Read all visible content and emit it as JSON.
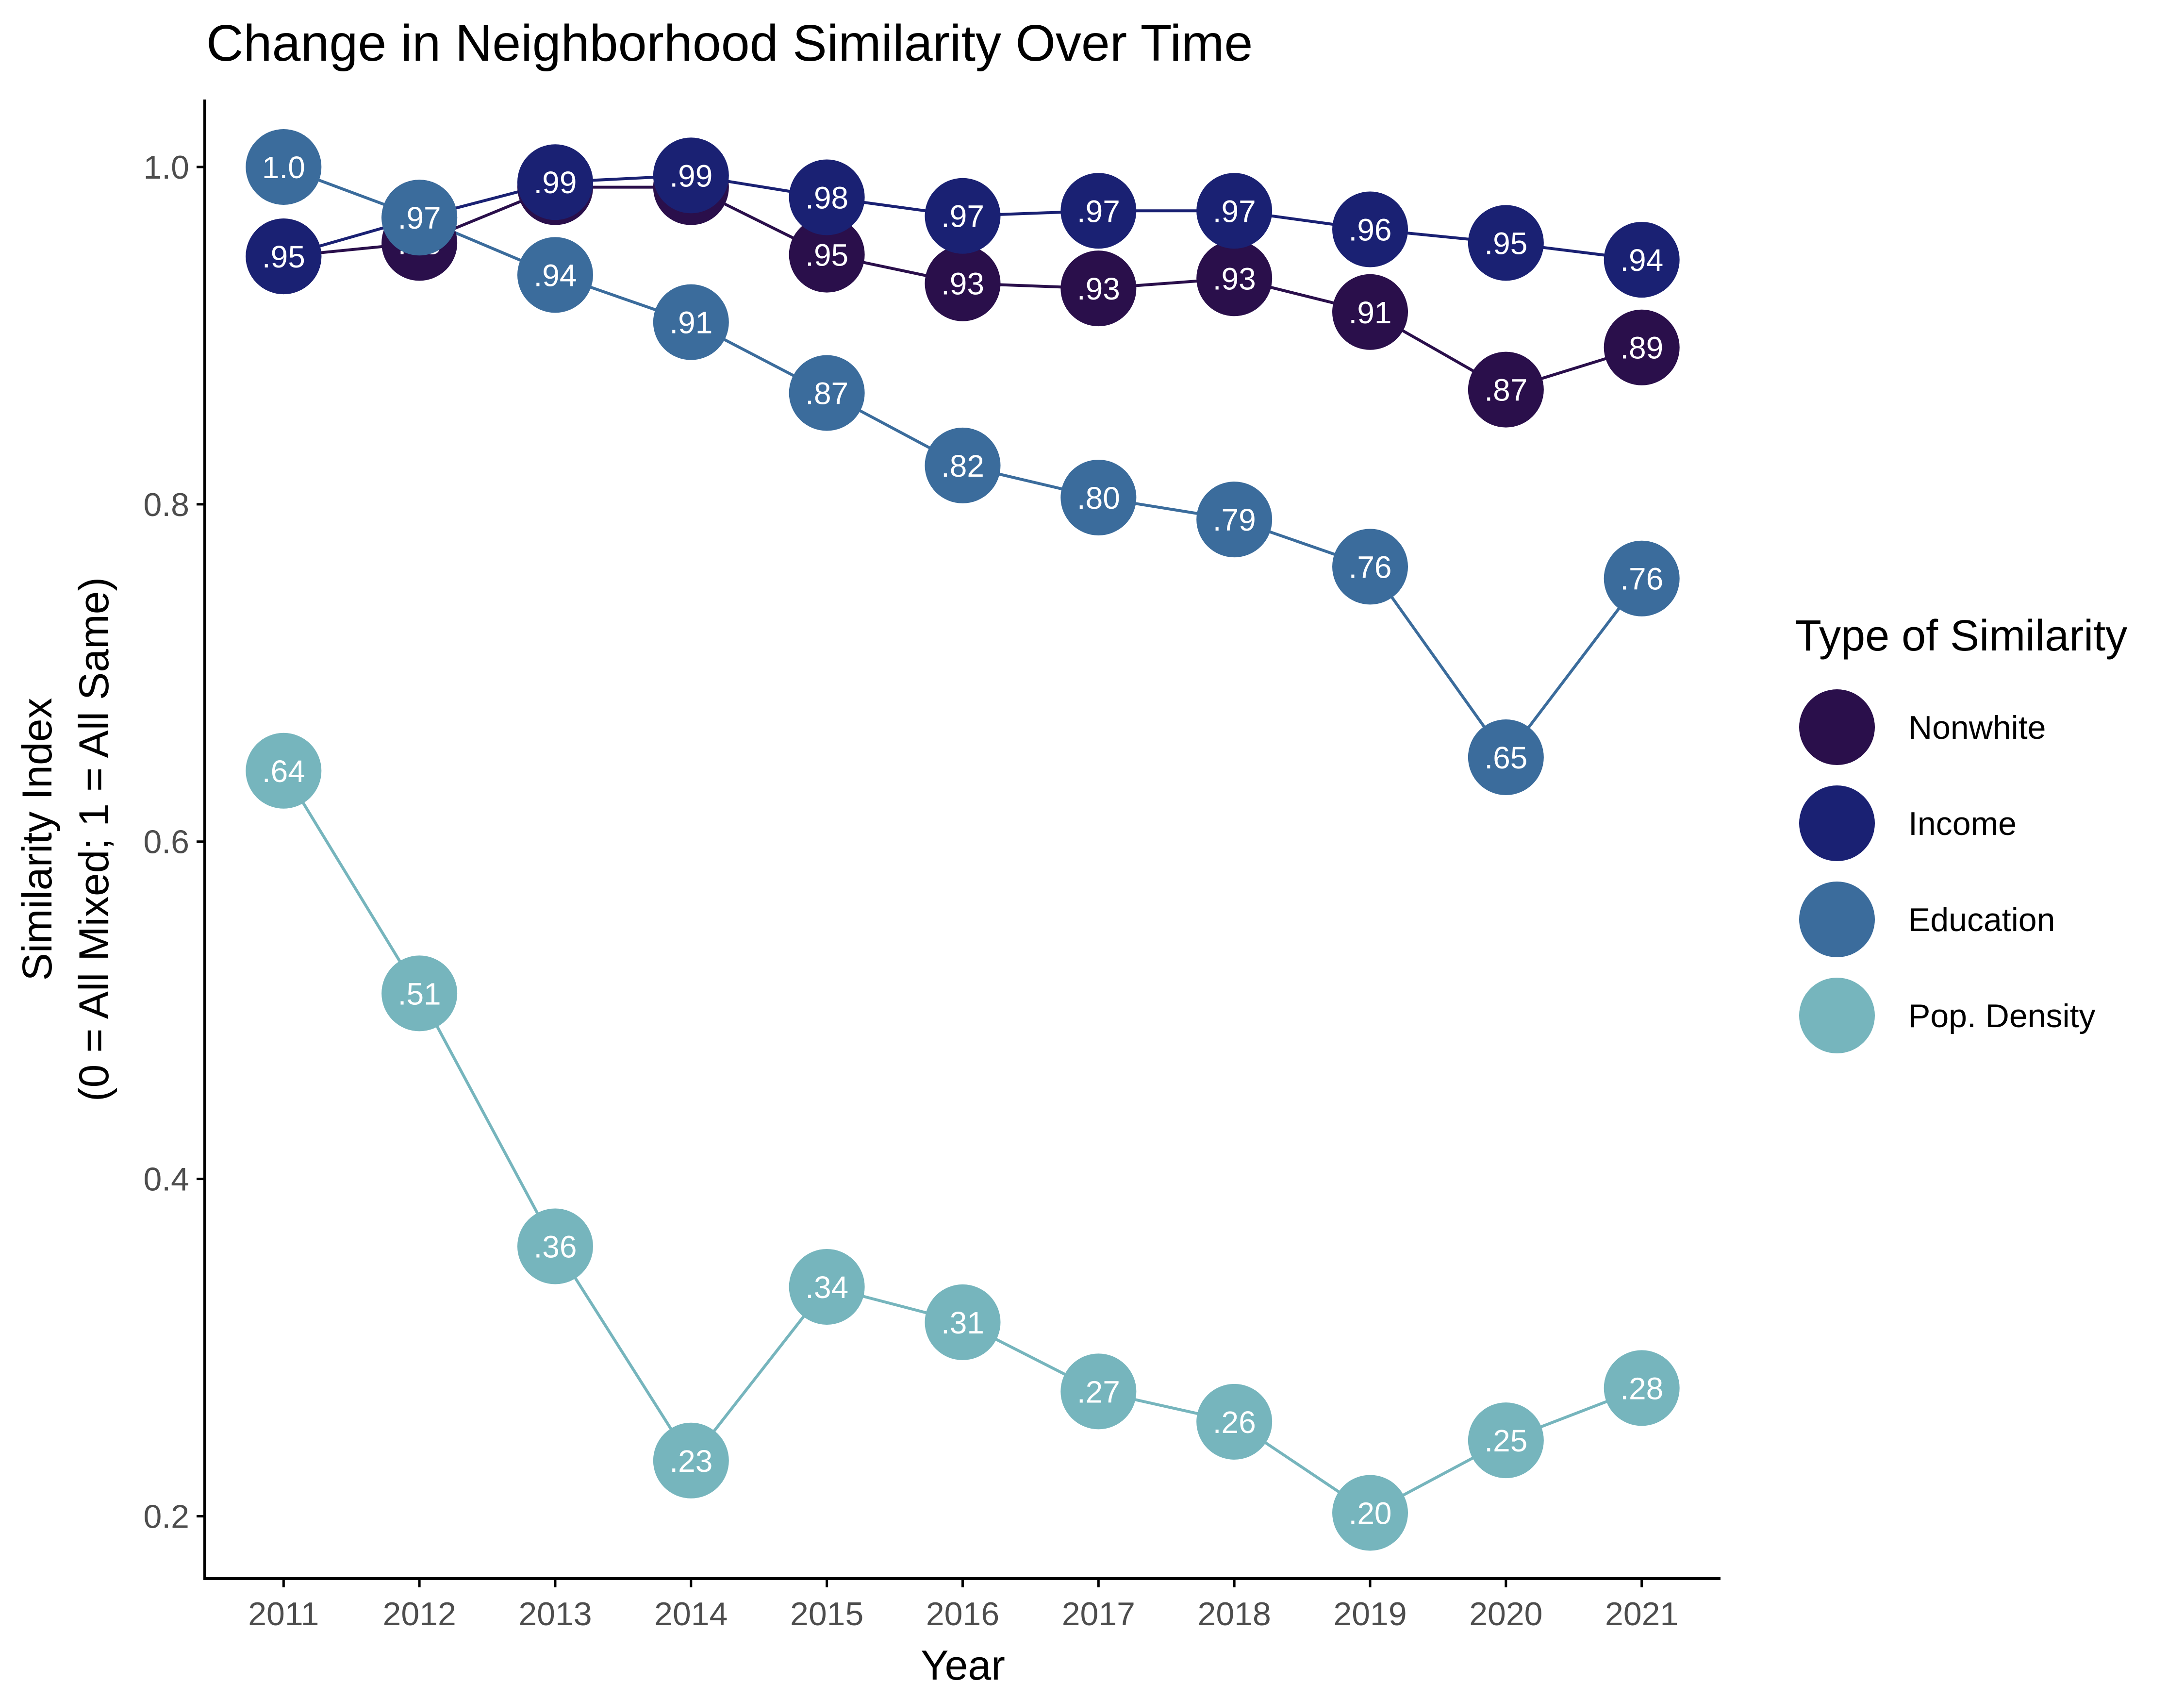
{
  "chart_data": {
    "type": "line",
    "title": "Change in Neighborhood Similarity Over Time",
    "xlabel": "Year",
    "ylabel_lines": [
      "Similarity Index",
      "(0 = All Mixed; 1 = All Same)"
    ],
    "x": [
      2011,
      2012,
      2013,
      2014,
      2015,
      2016,
      2017,
      2018,
      2019,
      2020,
      2021
    ],
    "y_ticks": [
      {
        "value": 0.2,
        "label": "0.2"
      },
      {
        "value": 0.4,
        "label": "0.4"
      },
      {
        "value": 0.6,
        "label": "0.6"
      },
      {
        "value": 0.8,
        "label": "0.8"
      },
      {
        "value": 1.0,
        "label": "1.0"
      }
    ],
    "ylim": [
      0.163,
      1.04
    ],
    "xlim": [
      2010.42,
      2021.58
    ],
    "grid": false,
    "legend": {
      "title": "Type of Similarity",
      "position": "right"
    },
    "series": [
      {
        "name": "Nonwhite",
        "color": "#2a0f4b",
        "values": [
          0.947,
          0.955,
          0.988,
          0.988,
          0.948,
          0.931,
          0.928,
          0.934,
          0.914,
          0.868,
          0.893
        ],
        "labels": [
          ".95",
          ".95",
          ".99",
          ".99",
          ".95",
          ".93",
          ".93",
          ".93",
          ".91",
          ".87",
          ".89"
        ]
      },
      {
        "name": "Income",
        "color": "#1a2173",
        "values": [
          0.947,
          0.97,
          0.991,
          0.995,
          0.982,
          0.971,
          0.974,
          0.974,
          0.963,
          0.955,
          0.945
        ],
        "labels": [
          ".95",
          ".97",
          ".99",
          ".99",
          ".98",
          ".97",
          ".97",
          ".97",
          ".96",
          ".95",
          ".94"
        ]
      },
      {
        "name": "Education",
        "color": "#3b6c9c",
        "values": [
          1.0,
          0.97,
          0.936,
          0.908,
          0.866,
          0.823,
          0.804,
          0.791,
          0.763,
          0.65,
          0.756
        ],
        "labels": [
          "1.0",
          ".97",
          ".94",
          ".91",
          ".87",
          ".82",
          ".80",
          ".79",
          ".76",
          ".65",
          ".76"
        ]
      },
      {
        "name": "Pop. Density",
        "color": "#76b5bd",
        "values": [
          0.642,
          0.51,
          0.36,
          0.233,
          0.336,
          0.315,
          0.274,
          0.256,
          0.202,
          0.245,
          0.276
        ],
        "labels": [
          ".64",
          ".51",
          ".36",
          ".23",
          ".34",
          ".31",
          ".27",
          ".26",
          ".20",
          ".25",
          ".28"
        ]
      }
    ]
  }
}
